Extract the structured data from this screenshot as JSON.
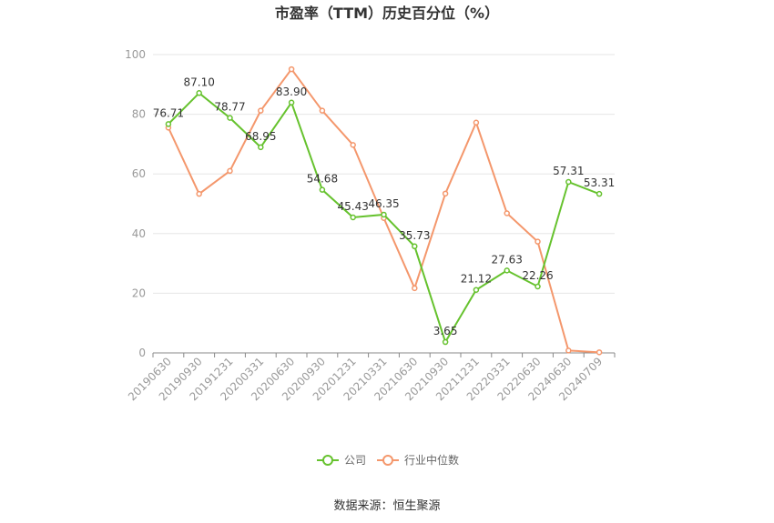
{
  "chart_data": {
    "type": "line",
    "title": "市盈率（TTM）历史百分位（%）",
    "categories": [
      "20190630",
      "20190930",
      "20191231",
      "20200331",
      "20200630",
      "20200930",
      "20201231",
      "20210331",
      "20210630",
      "20210930",
      "20211231",
      "20220331",
      "20220630",
      "20240630",
      "20240709"
    ],
    "series": [
      {
        "name": "公司",
        "color": "#66c22e",
        "values": [
          76.71,
          87.1,
          78.77,
          68.95,
          83.9,
          54.68,
          45.43,
          46.35,
          35.73,
          3.65,
          21.12,
          27.63,
          22.26,
          57.31,
          53.31
        ],
        "labels": [
          "76.71",
          "87.10",
          "78.77",
          "68.95",
          "83.90",
          "54.68",
          "45.43",
          "46.35",
          "35.73",
          "3.65",
          "21.12",
          "27.63",
          "22.26",
          "57.31",
          "53.31"
        ]
      },
      {
        "name": "行业中位数",
        "color": "#f4976c",
        "values": [
          75.5,
          53.3,
          61.0,
          81.2,
          95.1,
          81.2,
          69.7,
          45.2,
          21.7,
          53.4,
          77.2,
          46.8,
          37.3,
          0.8,
          0.2
        ]
      }
    ],
    "yticks": [
      "0",
      "20",
      "40",
      "60",
      "80",
      "100"
    ],
    "ylim": [
      0,
      100
    ],
    "grid": true,
    "legend_position": "bottom-center",
    "source": "数据来源：恒生聚源"
  }
}
